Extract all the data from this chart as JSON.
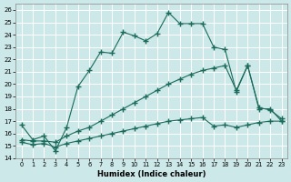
{
  "xlabel": "Humidex (Indice chaleur)",
  "bg_color": "#cce8e8",
  "grid_color": "#b0d4d4",
  "line_color": "#1a6b5a",
  "xlim": [
    -0.5,
    23.5
  ],
  "ylim": [
    14,
    26.5
  ],
  "yticks": [
    14,
    15,
    16,
    17,
    18,
    19,
    20,
    21,
    22,
    23,
    24,
    25,
    26
  ],
  "xticks": [
    0,
    1,
    2,
    3,
    4,
    5,
    6,
    7,
    8,
    9,
    10,
    11,
    12,
    13,
    14,
    15,
    16,
    17,
    18,
    19,
    20,
    21,
    22,
    23
  ],
  "line1_x": [
    0,
    1,
    2,
    3,
    4,
    5,
    6,
    7,
    8,
    9,
    10,
    11,
    12,
    13,
    14,
    15,
    16,
    17,
    18,
    19,
    20,
    21,
    22,
    23
  ],
  "line1_y": [
    16.7,
    15.5,
    15.8,
    14.6,
    16.5,
    19.8,
    21.1,
    22.6,
    22.5,
    24.2,
    23.9,
    23.5,
    24.1,
    25.8,
    24.9,
    24.9,
    24.9,
    23.0,
    22.8,
    19.4,
    21.5,
    18.0,
    18.0,
    17.0
  ],
  "line2_x": [
    0,
    1,
    2,
    3,
    4,
    5,
    6,
    7,
    8,
    9,
    10,
    11,
    12,
    13,
    14,
    15,
    16,
    17,
    18,
    19,
    20,
    21,
    22,
    23
  ],
  "line2_y": [
    15.5,
    15.4,
    15.4,
    15.3,
    15.8,
    16.2,
    16.5,
    17.0,
    17.5,
    18.0,
    18.5,
    19.0,
    19.5,
    20.0,
    20.4,
    20.8,
    21.1,
    21.3,
    21.5,
    19.5,
    21.5,
    18.1,
    17.9,
    17.2
  ],
  "line3_x": [
    0,
    1,
    2,
    3,
    4,
    5,
    6,
    7,
    8,
    9,
    10,
    11,
    12,
    13,
    14,
    15,
    16,
    17,
    18,
    19,
    20,
    21,
    22,
    23
  ],
  "line3_y": [
    15.3,
    15.1,
    15.2,
    14.9,
    15.2,
    15.4,
    15.6,
    15.8,
    16.0,
    16.2,
    16.4,
    16.6,
    16.8,
    17.0,
    17.1,
    17.2,
    17.3,
    16.6,
    16.7,
    16.5,
    16.7,
    16.9,
    17.0,
    17.0
  ]
}
